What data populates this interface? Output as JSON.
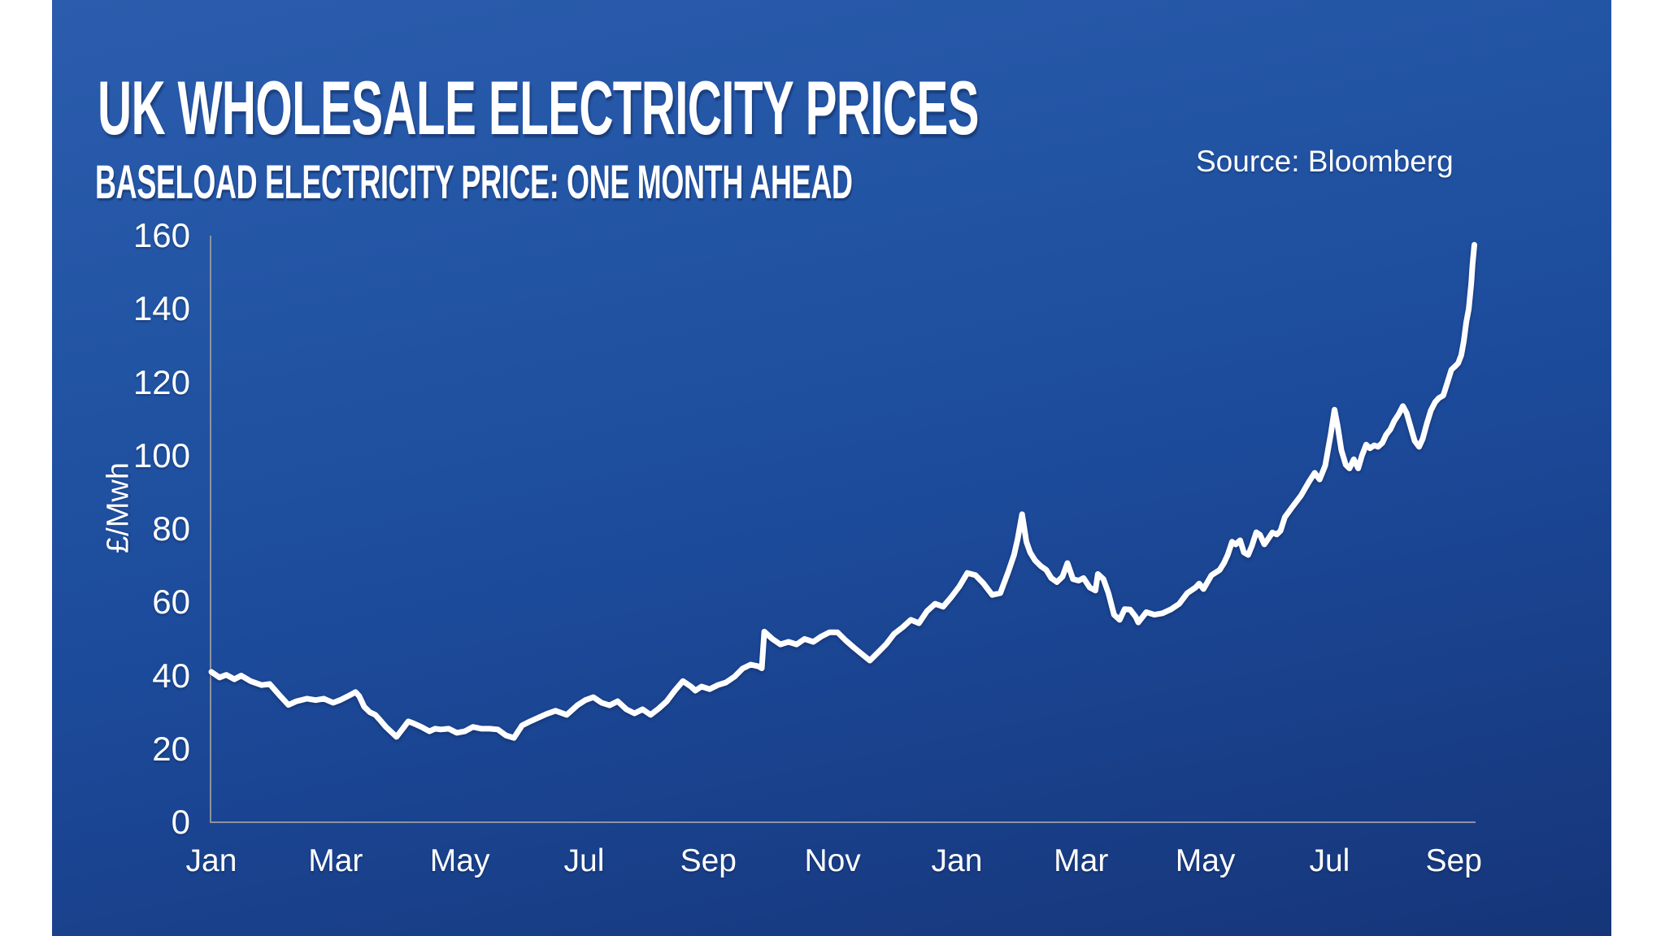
{
  "header": {
    "title": "UK WHOLESALE ELECTRICITY PRICES",
    "subtitle": "BASELOAD ELECTRICITY PRICE: ONE MONTH AHEAD",
    "source": "Source: Bloomberg"
  },
  "colors": {
    "panel_top": "#2b5cad",
    "panel_bottom": "#163579",
    "line": "#ffffff",
    "axis": "#8d93a1",
    "text": "#ffffff",
    "page_margin": "#ffffff"
  },
  "chart_data": {
    "type": "line",
    "title": "UK WHOLESALE ELECTRICITY PRICES",
    "subtitle": "BASELOAD ELECTRICITY PRICE: ONE MONTH AHEAD",
    "source": "Source: Bloomberg",
    "xlabel": "",
    "ylabel": "£/Mwh",
    "ylim": [
      0,
      160
    ],
    "yticks": [
      0,
      20,
      40,
      60,
      80,
      100,
      120,
      140,
      160
    ],
    "xlim_months": [
      0,
      20.35
    ],
    "xtick_positions_months": [
      0,
      2,
      4,
      6,
      8,
      10,
      12,
      14,
      16,
      18,
      20
    ],
    "xtick_labels": [
      "Jan",
      "Mar",
      "May",
      "Jul",
      "Sep",
      "Nov",
      "Jan",
      "Mar",
      "May",
      "Jul",
      "Sep"
    ],
    "grid": false,
    "legend": "none",
    "series": [
      {
        "name": "Baseload electricity price: one month ahead (£/Mwh)",
        "color": "#ffffff",
        "points_month_value": [
          [
            0,
            41
          ],
          [
            0.13,
            39.5
          ],
          [
            0.24,
            40.2
          ],
          [
            0.37,
            39
          ],
          [
            0.48,
            40
          ],
          [
            0.63,
            38.5
          ],
          [
            0.81,
            37.4
          ],
          [
            0.94,
            37.7
          ],
          [
            1.11,
            34.4
          ],
          [
            1.24,
            32
          ],
          [
            1.37,
            33
          ],
          [
            1.54,
            33.7
          ],
          [
            1.68,
            33.3
          ],
          [
            1.81,
            33.7
          ],
          [
            1.96,
            32.6
          ],
          [
            2.07,
            33.3
          ],
          [
            2.2,
            34.4
          ],
          [
            2.32,
            35.5
          ],
          [
            2.38,
            34.4
          ],
          [
            2.46,
            31.5
          ],
          [
            2.55,
            30
          ],
          [
            2.64,
            29.3
          ],
          [
            2.72,
            27.8
          ],
          [
            2.81,
            26
          ],
          [
            2.91,
            24.4
          ],
          [
            2.98,
            23.3
          ],
          [
            3.08,
            25.5
          ],
          [
            3.17,
            27.5
          ],
          [
            3.25,
            27
          ],
          [
            3.38,
            26
          ],
          [
            3.51,
            24.8
          ],
          [
            3.6,
            25.5
          ],
          [
            3.69,
            25.3
          ],
          [
            3.82,
            25.5
          ],
          [
            3.95,
            24.4
          ],
          [
            4.08,
            24.8
          ],
          [
            4.21,
            26
          ],
          [
            4.35,
            25.5
          ],
          [
            4.48,
            25.5
          ],
          [
            4.61,
            25.3
          ],
          [
            4.74,
            23.7
          ],
          [
            4.87,
            23
          ],
          [
            5,
            26.4
          ],
          [
            5.13,
            27.5
          ],
          [
            5.26,
            28.5
          ],
          [
            5.39,
            29.5
          ],
          [
            5.54,
            30.4
          ],
          [
            5.72,
            29.3
          ],
          [
            5.89,
            31.9
          ],
          [
            6.02,
            33.3
          ],
          [
            6.15,
            34.1
          ],
          [
            6.28,
            32.6
          ],
          [
            6.41,
            31.9
          ],
          [
            6.54,
            33
          ],
          [
            6.68,
            30.8
          ],
          [
            6.81,
            29.7
          ],
          [
            6.94,
            30.8
          ],
          [
            7.07,
            29.3
          ],
          [
            7.2,
            31
          ],
          [
            7.33,
            33
          ],
          [
            7.46,
            35.9
          ],
          [
            7.59,
            38.5
          ],
          [
            7.72,
            37
          ],
          [
            7.79,
            35.9
          ],
          [
            7.89,
            37
          ],
          [
            8.02,
            36.3
          ],
          [
            8.15,
            37.4
          ],
          [
            8.28,
            38.1
          ],
          [
            8.42,
            39.7
          ],
          [
            8.55,
            41.9
          ],
          [
            8.68,
            43
          ],
          [
            8.81,
            42.5
          ],
          [
            8.86,
            42
          ],
          [
            8.9,
            52
          ],
          [
            9.03,
            50
          ],
          [
            9.16,
            48.5
          ],
          [
            9.29,
            49.2
          ],
          [
            9.42,
            48.5
          ],
          [
            9.55,
            50
          ],
          [
            9.69,
            49.2
          ],
          [
            9.82,
            50.7
          ],
          [
            9.95,
            51.8
          ],
          [
            10.08,
            51.8
          ],
          [
            10.21,
            49.6
          ],
          [
            10.34,
            47.7
          ],
          [
            10.47,
            45.9
          ],
          [
            10.6,
            44.1
          ],
          [
            10.73,
            46.3
          ],
          [
            10.86,
            48.5
          ],
          [
            10.99,
            51.4
          ],
          [
            11.13,
            53.2
          ],
          [
            11.26,
            55.2
          ],
          [
            11.39,
            54.3
          ],
          [
            11.52,
            57.6
          ],
          [
            11.65,
            59.6
          ],
          [
            11.78,
            58.8
          ],
          [
            11.91,
            61.4
          ],
          [
            12.04,
            64.3
          ],
          [
            12.17,
            68
          ],
          [
            12.3,
            67.4
          ],
          [
            12.43,
            65.1
          ],
          [
            12.57,
            62
          ],
          [
            12.7,
            62.5
          ],
          [
            12.83,
            68.4
          ],
          [
            12.92,
            72.9
          ],
          [
            12.98,
            77.3
          ],
          [
            13.05,
            84
          ],
          [
            13.12,
            76.5
          ],
          [
            13.18,
            73.6
          ],
          [
            13.26,
            71.4
          ],
          [
            13.35,
            69.9
          ],
          [
            13.44,
            68.8
          ],
          [
            13.52,
            66.6
          ],
          [
            13.61,
            65.5
          ],
          [
            13.7,
            67
          ],
          [
            13.78,
            70.7
          ],
          [
            13.87,
            66.3
          ],
          [
            13.96,
            65.9
          ],
          [
            14.04,
            66.6
          ],
          [
            14.14,
            64
          ],
          [
            14.23,
            63.2
          ],
          [
            14.27,
            67.7
          ],
          [
            14.36,
            66.3
          ],
          [
            14.44,
            62.5
          ],
          [
            14.53,
            56.6
          ],
          [
            14.62,
            55.2
          ],
          [
            14.7,
            58.1
          ],
          [
            14.79,
            58
          ],
          [
            14.88,
            56
          ],
          [
            14.92,
            54.5
          ],
          [
            15.05,
            57.3
          ],
          [
            15.18,
            56.6
          ],
          [
            15.31,
            57
          ],
          [
            15.45,
            58.1
          ],
          [
            15.58,
            59.6
          ],
          [
            15.71,
            62.5
          ],
          [
            15.84,
            64
          ],
          [
            15.9,
            65.1
          ],
          [
            15.97,
            63.6
          ],
          [
            16.1,
            67.4
          ],
          [
            16.23,
            68.8
          ],
          [
            16.3,
            70.7
          ],
          [
            16.36,
            72.9
          ],
          [
            16.43,
            76.5
          ],
          [
            16.49,
            75.8
          ],
          [
            16.56,
            76.9
          ],
          [
            16.62,
            73.6
          ],
          [
            16.69,
            72.9
          ],
          [
            16.75,
            75.4
          ],
          [
            16.82,
            79.1
          ],
          [
            16.88,
            78.4
          ],
          [
            16.95,
            75.8
          ],
          [
            17.02,
            77.5
          ],
          [
            17.08,
            79
          ],
          [
            17.15,
            78.5
          ],
          [
            17.21,
            79.5
          ],
          [
            17.28,
            83.2
          ],
          [
            17.41,
            86.2
          ],
          [
            17.54,
            89.1
          ],
          [
            17.67,
            92.9
          ],
          [
            17.76,
            95.3
          ],
          [
            17.84,
            93.5
          ],
          [
            17.93,
            97.3
          ],
          [
            18.02,
            106
          ],
          [
            18.08,
            112.5
          ],
          [
            18.13,
            108
          ],
          [
            18.19,
            101.5
          ],
          [
            18.26,
            97.5
          ],
          [
            18.32,
            96.5
          ],
          [
            18.39,
            99
          ],
          [
            18.46,
            96.5
          ],
          [
            18.52,
            100
          ],
          [
            18.59,
            103
          ],
          [
            18.65,
            102
          ],
          [
            18.72,
            102.8
          ],
          [
            18.78,
            102.4
          ],
          [
            18.85,
            103.5
          ],
          [
            18.91,
            105.7
          ],
          [
            18.98,
            107.2
          ],
          [
            19.04,
            109.4
          ],
          [
            19.11,
            111.2
          ],
          [
            19.18,
            113.5
          ],
          [
            19.24,
            111.6
          ],
          [
            19.31,
            107.5
          ],
          [
            19.37,
            104
          ],
          [
            19.44,
            102.4
          ],
          [
            19.5,
            104.6
          ],
          [
            19.57,
            109
          ],
          [
            19.63,
            112.3
          ],
          [
            19.7,
            114.6
          ],
          [
            19.76,
            115.7
          ],
          [
            19.83,
            116.4
          ],
          [
            19.9,
            120.1
          ],
          [
            19.96,
            123.4
          ],
          [
            20.03,
            124.5
          ],
          [
            20.07,
            125.2
          ],
          [
            20.12,
            127.4
          ],
          [
            20.16,
            131.2
          ],
          [
            20.2,
            136.3
          ],
          [
            20.24,
            140
          ],
          [
            20.28,
            147
          ],
          [
            20.3,
            152
          ],
          [
            20.33,
            157.5
          ]
        ]
      }
    ]
  }
}
